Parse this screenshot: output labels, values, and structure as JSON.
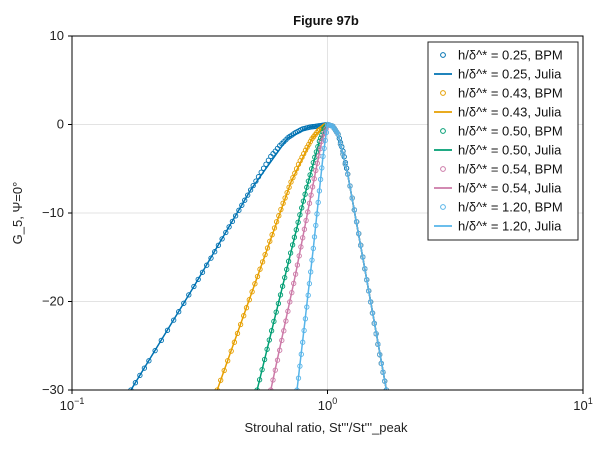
{
  "chart_data": {
    "type": "line",
    "title": "Figure 97b",
    "xlabel": "Strouhal ratio, St'''/St'''_peak",
    "ylabel": "G_5, Ψ=0°",
    "xscale": "log",
    "xlim": [
      0.1,
      10
    ],
    "ylim": [
      -30,
      10
    ],
    "x_ticks": [
      0.1,
      1,
      10
    ],
    "x_tick_labels": [
      [
        "10",
        "−1"
      ],
      [
        "10",
        "0"
      ],
      [
        "10",
        "1"
      ]
    ],
    "y_ticks": [
      10,
      0,
      -10,
      -20,
      -30
    ],
    "y_tick_labels": [
      "10",
      "0",
      "−10",
      "−20",
      "−30"
    ],
    "grid": true,
    "legend_position": "top-right",
    "series": [
      {
        "name": "h/δ^* = 0.25, BPM",
        "style": "marker",
        "color": "#0072b2",
        "x": [
          0.17,
          0.2,
          0.25,
          0.3,
          0.35,
          0.4,
          0.45,
          0.5,
          0.55,
          0.6,
          0.65,
          0.7,
          0.75,
          0.8,
          0.85,
          0.9,
          0.95,
          1.0,
          1.05,
          1.1,
          1.15,
          1.2,
          1.3,
          1.4,
          1.5,
          1.6,
          1.7
        ],
        "y": [
          -30.0,
          -26.7,
          -22.1,
          -18.3,
          -15.1,
          -12.2,
          -9.7,
          -7.4,
          -5.4,
          -3.6,
          -2.4,
          -1.5,
          -0.9,
          -0.5,
          -0.3,
          -0.2,
          -0.1,
          0.0,
          -0.2,
          -1.1,
          -3.0,
          -5.6,
          -11.0,
          -16.3,
          -21.3,
          -26.0,
          -30.0
        ]
      },
      {
        "name": "h/δ^* = 0.25, Julia",
        "style": "line",
        "color": "#0072b2",
        "x": [
          0.17,
          0.3,
          0.5,
          0.7,
          0.85,
          0.95,
          1.0,
          1.05,
          1.1,
          1.2,
          1.4,
          1.7
        ],
        "y": [
          -30.0,
          -18.3,
          -7.4,
          -1.5,
          -0.3,
          -0.1,
          0.0,
          -0.2,
          -1.1,
          -5.6,
          -16.3,
          -30.0
        ]
      },
      {
        "name": "h/δ^* = 0.43, BPM",
        "style": "marker",
        "color": "#e69f00",
        "x": [
          0.37,
          0.42,
          0.47,
          0.52,
          0.57,
          0.62,
          0.67,
          0.72,
          0.77,
          0.82,
          0.87,
          0.92,
          0.97,
          1.0,
          1.05,
          1.1,
          1.2,
          1.3,
          1.4,
          1.5,
          1.6,
          1.7
        ],
        "y": [
          -30.0,
          -25.6,
          -21.6,
          -18.0,
          -14.7,
          -11.7,
          -8.9,
          -6.5,
          -4.5,
          -2.9,
          -1.6,
          -0.7,
          -0.2,
          0.0,
          -0.2,
          -1.1,
          -5.6,
          -11.0,
          -16.3,
          -21.3,
          -26.0,
          -30.0
        ]
      },
      {
        "name": "h/δ^* = 0.43, Julia",
        "style": "line",
        "color": "#e69f00",
        "x": [
          0.37,
          0.52,
          0.72,
          0.87,
          0.97,
          1.0,
          1.05,
          1.1,
          1.2,
          1.4,
          1.7
        ],
        "y": [
          -30.0,
          -18.0,
          -6.5,
          -1.6,
          -0.2,
          0.0,
          -0.2,
          -1.1,
          -5.6,
          -16.3,
          -30.0
        ]
      },
      {
        "name": "h/δ^* = 0.50, BPM",
        "style": "marker",
        "color": "#009e73",
        "x": [
          0.53,
          0.58,
          0.63,
          0.68,
          0.73,
          0.78,
          0.83,
          0.88,
          0.93,
          0.97,
          1.0,
          1.05,
          1.1,
          1.2,
          1.3,
          1.4,
          1.5,
          1.6,
          1.7
        ],
        "y": [
          -30.0,
          -25.4,
          -21.2,
          -17.3,
          -13.6,
          -10.2,
          -7.1,
          -4.3,
          -1.9,
          -0.5,
          0.0,
          -0.2,
          -1.1,
          -5.6,
          -11.0,
          -16.3,
          -21.3,
          -26.0,
          -30.0
        ]
      },
      {
        "name": "h/δ^* = 0.50, Julia",
        "style": "line",
        "color": "#009e73",
        "x": [
          0.53,
          0.68,
          0.83,
          0.93,
          1.0,
          1.05,
          1.1,
          1.2,
          1.4,
          1.7
        ],
        "y": [
          -30.0,
          -17.3,
          -7.1,
          -1.9,
          0.0,
          -0.2,
          -1.1,
          -5.6,
          -16.3,
          -30.0
        ]
      },
      {
        "name": "h/δ^* = 0.54, BPM",
        "style": "marker",
        "color": "#cc79a7",
        "x": [
          0.6,
          0.65,
          0.7,
          0.75,
          0.8,
          0.85,
          0.9,
          0.95,
          1.0,
          1.05,
          1.1,
          1.2,
          1.3,
          1.4,
          1.5,
          1.6,
          1.7
        ],
        "y": [
          -30.0,
          -25.5,
          -21.1,
          -16.9,
          -12.8,
          -8.9,
          -5.2,
          -1.9,
          0.0,
          -0.2,
          -1.1,
          -5.6,
          -11.0,
          -16.3,
          -21.3,
          -26.0,
          -30.0
        ]
      },
      {
        "name": "h/δ^* = 0.54, Julia",
        "style": "line",
        "color": "#cc79a7",
        "x": [
          0.6,
          0.75,
          0.9,
          0.95,
          1.0,
          1.05,
          1.1,
          1.2,
          1.4,
          1.7
        ],
        "y": [
          -30.0,
          -16.9,
          -5.2,
          -1.9,
          0.0,
          -0.2,
          -1.1,
          -5.6,
          -16.3,
          -30.0
        ]
      },
      {
        "name": "h/δ^* = 1.20, BPM",
        "style": "marker",
        "color": "#56b4e9",
        "x": [
          0.76,
          0.8,
          0.84,
          0.88,
          0.92,
          0.96,
          1.0,
          1.05,
          1.1,
          1.2,
          1.3,
          1.4,
          1.5,
          1.6,
          1.7
        ],
        "y": [
          -30.0,
          -24.6,
          -19.3,
          -14.0,
          -8.8,
          -3.6,
          0.0,
          -0.2,
          -1.1,
          -5.6,
          -11.0,
          -16.3,
          -21.3,
          -26.0,
          -30.0
        ]
      },
      {
        "name": "h/δ^* = 1.20, Julia",
        "style": "line",
        "color": "#56b4e9",
        "x": [
          0.76,
          0.88,
          0.96,
          1.0,
          1.05,
          1.1,
          1.2,
          1.4,
          1.7
        ],
        "y": [
          -30.0,
          -14.0,
          -3.6,
          0.0,
          -0.2,
          -1.1,
          -5.6,
          -16.3,
          -30.0
        ]
      }
    ]
  }
}
